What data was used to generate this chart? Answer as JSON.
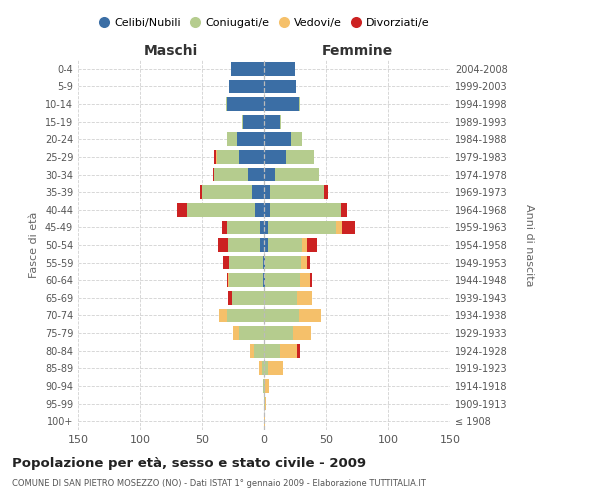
{
  "age_groups": [
    "100+",
    "95-99",
    "90-94",
    "85-89",
    "80-84",
    "75-79",
    "70-74",
    "65-69",
    "60-64",
    "55-59",
    "50-54",
    "45-49",
    "40-44",
    "35-39",
    "30-34",
    "25-29",
    "20-24",
    "15-19",
    "10-14",
    "5-9",
    "0-4"
  ],
  "birth_years": [
    "≤ 1908",
    "1909-1913",
    "1914-1918",
    "1919-1923",
    "1924-1928",
    "1929-1933",
    "1934-1938",
    "1939-1943",
    "1944-1948",
    "1949-1953",
    "1954-1958",
    "1959-1963",
    "1964-1968",
    "1969-1973",
    "1974-1978",
    "1979-1983",
    "1984-1988",
    "1989-1993",
    "1994-1998",
    "1999-2003",
    "2004-2008"
  ],
  "male": {
    "celibi": [
      0,
      0,
      0,
      0,
      0,
      0,
      0,
      0,
      1,
      1,
      3,
      3,
      7,
      10,
      13,
      20,
      22,
      17,
      30,
      28,
      27
    ],
    "coniugati": [
      0,
      0,
      1,
      2,
      8,
      20,
      30,
      26,
      27,
      27,
      26,
      27,
      55,
      40,
      27,
      18,
      8,
      1,
      1,
      0,
      0
    ],
    "vedovi": [
      0,
      0,
      0,
      2,
      3,
      5,
      6,
      0,
      1,
      0,
      0,
      0,
      0,
      0,
      0,
      1,
      0,
      0,
      0,
      0,
      0
    ],
    "divorziati": [
      0,
      0,
      0,
      0,
      0,
      0,
      0,
      3,
      1,
      5,
      8,
      4,
      8,
      2,
      1,
      1,
      0,
      0,
      0,
      0,
      0
    ]
  },
  "female": {
    "nubili": [
      0,
      0,
      0,
      0,
      0,
      0,
      0,
      0,
      1,
      1,
      3,
      3,
      5,
      5,
      9,
      18,
      22,
      13,
      28,
      26,
      25
    ],
    "coniugate": [
      0,
      1,
      1,
      3,
      13,
      23,
      28,
      27,
      28,
      29,
      28,
      55,
      57,
      43,
      35,
      22,
      9,
      1,
      1,
      0,
      0
    ],
    "vedove": [
      1,
      1,
      3,
      12,
      14,
      15,
      18,
      12,
      8,
      5,
      4,
      5,
      0,
      0,
      0,
      0,
      0,
      0,
      0,
      0,
      0
    ],
    "divorziate": [
      0,
      0,
      0,
      0,
      2,
      0,
      0,
      0,
      2,
      2,
      8,
      10,
      5,
      4,
      0,
      0,
      0,
      0,
      0,
      0,
      0
    ]
  },
  "colors": {
    "celibi": "#3b6ea5",
    "coniugati": "#b5cc8e",
    "vedovi": "#f5c06a",
    "divorziati": "#cc2222"
  },
  "title": "Popolazione per età, sesso e stato civile - 2009",
  "subtitle": "COMUNE DI SAN PIETRO MOSEZZO (NO) - Dati ISTAT 1° gennaio 2009 - Elaborazione TUTTITALIA.IT",
  "xlabel_left": "Maschi",
  "xlabel_right": "Femmine",
  "ylabel_left": "Fasce di età",
  "ylabel_right": "Anni di nascita",
  "xlim": 150,
  "bg_color": "#ffffff",
  "grid_color": "#cccccc",
  "legend_labels": [
    "Celibi/Nubili",
    "Coniugati/e",
    "Vedovi/e",
    "Divorziati/e"
  ]
}
